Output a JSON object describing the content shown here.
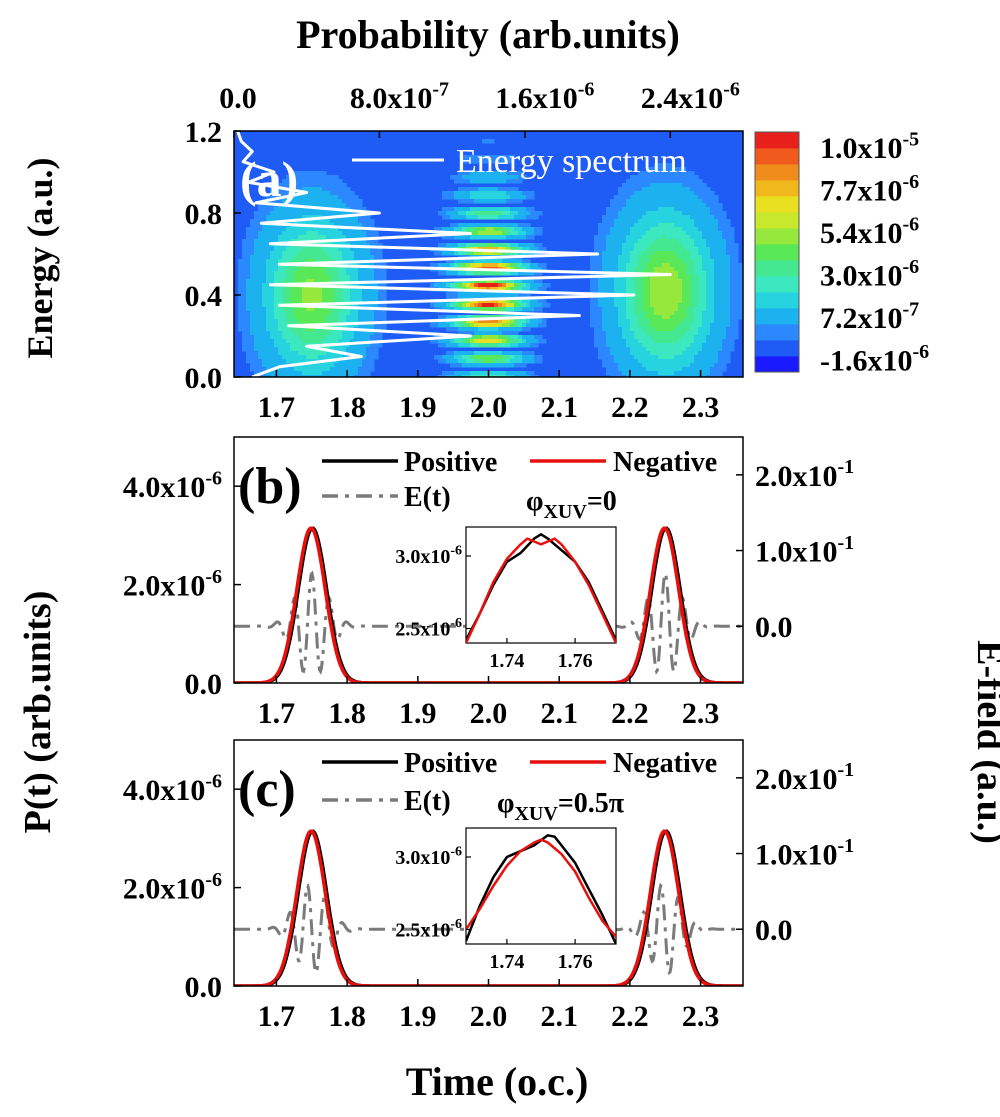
{
  "figure": {
    "top_axis_title": "Probability (arb.units)",
    "energy_axis_title": "Energy (a.u.)",
    "pt_axis_title": "P(t) (arb.units)",
    "efield_axis_title": "E-field (a.u.)",
    "time_axis_title": "Time (o.c.)"
  },
  "colors": {
    "positive": "#000000",
    "negative": "#e8100c",
    "efield": "#7a7a7a",
    "spectrum": "#ffffff",
    "map_background": "#1f5cf5"
  },
  "chart_data": [
    {
      "id": "a",
      "type": "heatmap",
      "panel_label": "(a)",
      "xlabel": "Time (o.c.)",
      "ylabel": "Energy (a.u.)",
      "top_xlabel": "Probability (arb.units)",
      "xlim": [
        1.64,
        2.36
      ],
      "ylim": [
        0.0,
        1.2
      ],
      "top_xlim": [
        0.0,
        2.8e-06
      ],
      "x_ticks": [
        1.7,
        1.8,
        1.9,
        2.0,
        2.1,
        2.2,
        2.3
      ],
      "x_tick_labels": [
        "1.7",
        "1.8",
        "1.9",
        "2.0",
        "2.1",
        "2.2",
        "2.3"
      ],
      "y_ticks": [
        0.0,
        0.4,
        0.8,
        1.2
      ],
      "y_tick_labels": [
        "0.0",
        "0.4",
        "0.8",
        "1.2"
      ],
      "top_ticks": [
        0.0,
        8e-07,
        1.6e-06,
        2.4e-06
      ],
      "top_tick_labels": [
        "0.0",
        "8.0x10",
        "1.6x10",
        "2.4x10"
      ],
      "top_tick_exponents": [
        "",
        "-7",
        "-6",
        "-6"
      ],
      "colorbar": {
        "range": [
          -1.6e-06,
          1e-05
        ],
        "tick_labels": [
          "1.0x10",
          "7.7x10",
          "5.4x10",
          "3.0x10",
          "7.2x10",
          "-1.6x10"
        ],
        "tick_exponents": [
          "-5",
          "-6",
          "-6",
          "-6",
          "-7",
          "-6"
        ],
        "colors": [
          "#1a1aff",
          "#1f5cf5",
          "#2c88ff",
          "#1cb2f0",
          "#28d3e0",
          "#3ce8c0",
          "#44e890",
          "#58e858",
          "#96e83c",
          "#c8e82c",
          "#e8e020",
          "#f0b81c",
          "#f08c1c",
          "#f05a1c",
          "#e8201c"
        ]
      },
      "legend": [
        {
          "name": "Energy spectrum",
          "style": "line",
          "color": "#ffffff"
        }
      ],
      "blobs": [
        {
          "t": 1.75,
          "e": 0.4,
          "sigma_t": 0.042,
          "sigma_e": 0.24,
          "peak": 4.5e-06,
          "fringes": 0
        },
        {
          "t": 2.0,
          "e": 0.42,
          "sigma_t": 0.03,
          "sigma_e": 0.26,
          "peak": 1e-05,
          "fringes": 9
        },
        {
          "t": 2.25,
          "e": 0.42,
          "sigma_t": 0.042,
          "sigma_e": 0.24,
          "peak": 5e-06,
          "fringes": 0
        }
      ],
      "spectrum": {
        "energy": [
          0.0,
          0.05,
          0.1,
          0.15,
          0.2,
          0.25,
          0.3,
          0.35,
          0.4,
          0.45,
          0.5,
          0.55,
          0.6,
          0.65,
          0.7,
          0.75,
          0.8,
          0.85,
          0.9,
          0.95,
          1.0,
          1.05,
          1.1,
          1.15,
          1.2
        ],
        "probability": [
          1e-07,
          2.5e-07,
          7e-07,
          4e-07,
          1.3e-06,
          3e-07,
          1.9e-06,
          2.5e-07,
          2.2e-06,
          2e-07,
          2.4e-06,
          2.5e-07,
          2e-06,
          2e-07,
          1.3e-06,
          1.5e-07,
          8e-07,
          1.2e-07,
          4e-07,
          8e-08,
          2.2e-07,
          5e-08,
          1e-07,
          4e-08,
          2e-08
        ]
      }
    },
    {
      "id": "b",
      "type": "line",
      "panel_label": "(b)",
      "phase_label": "φ",
      "phase_subscript": "XUV",
      "phase_value": "=0",
      "xlim": [
        1.64,
        2.36
      ],
      "ylim": [
        0.0,
        5e-06
      ],
      "y2lim": [
        -0.075,
        0.25
      ],
      "x_ticks": [
        1.7,
        1.8,
        1.9,
        2.0,
        2.1,
        2.2,
        2.3
      ],
      "x_tick_labels": [
        "1.7",
        "1.8",
        "1.9",
        "2.0",
        "2.1",
        "2.2",
        "2.3"
      ],
      "y_ticks": [
        0.0,
        2e-06,
        4e-06
      ],
      "y_tick_labels": [
        "0.0",
        "2.0x10",
        "4.0x10"
      ],
      "y_tick_exponents": [
        "",
        "-6",
        "-6"
      ],
      "y2_ticks": [
        0.0,
        0.1,
        0.2
      ],
      "y2_tick_labels": [
        "0.0",
        "1.0x10",
        "2.0x10"
      ],
      "y2_tick_exponents": [
        "",
        "-1",
        "-1"
      ],
      "legend": [
        {
          "name": "Positive",
          "style": "solid",
          "color": "#000000"
        },
        {
          "name": "Negative",
          "style": "solid",
          "color": "#e8100c"
        },
        {
          "name": "E(t)",
          "style": "dashdot",
          "color": "#7a7a7a"
        }
      ],
      "pulses": [
        {
          "center": 1.75,
          "peak": 3.15e-06,
          "sigma": 0.02
        },
        {
          "center": 2.25,
          "peak": 3.15e-06,
          "sigma": 0.02
        }
      ],
      "efield": [
        {
          "center": 1.75,
          "amplitude": 0.07,
          "sigma": 0.022,
          "period": 0.025
        },
        {
          "center": 2.25,
          "amplitude": 0.07,
          "sigma": 0.022,
          "period": 0.025
        }
      ],
      "inset": {
        "xlim": [
          1.728,
          1.772
        ],
        "ylim": [
          2.4e-06,
          3.2e-06
        ],
        "x_tick_labels": [
          "1.74",
          "1.76"
        ],
        "x_ticks": [
          1.74,
          1.76
        ],
        "y_tick_labels": [
          "2.5x10",
          "3.0x10"
        ],
        "y_tick_exponents": [
          "-6",
          "-6"
        ],
        "y_ticks": [
          2.5e-06,
          3e-06
        ],
        "positive": {
          "x": [
            1.728,
            1.732,
            1.736,
            1.74,
            1.744,
            1.748,
            1.75,
            1.752,
            1.756,
            1.76,
            1.764,
            1.768,
            1.772
          ],
          "y": [
            2.42e-06,
            2.6e-06,
            2.8e-06,
            2.96e-06,
            3.02e-06,
            3.12e-06,
            3.15e-06,
            3.12e-06,
            3.04e-06,
            2.96e-06,
            2.82e-06,
            2.62e-06,
            2.42e-06
          ]
        },
        "negative": {
          "x": [
            1.728,
            1.732,
            1.736,
            1.74,
            1.744,
            1.746,
            1.748,
            1.75,
            1.752,
            1.754,
            1.756,
            1.76,
            1.764,
            1.768,
            1.772
          ],
          "y": [
            2.4e-06,
            2.6e-06,
            2.82e-06,
            2.98e-06,
            3.08e-06,
            3.12e-06,
            3.1e-06,
            3.08e-06,
            3.1e-06,
            3.12e-06,
            3.08e-06,
            2.96e-06,
            2.8e-06,
            2.6e-06,
            2.4e-06
          ]
        }
      }
    },
    {
      "id": "c",
      "type": "line",
      "panel_label": "(c)",
      "phase_label": "φ",
      "phase_subscript": "XUV",
      "phase_value": "=0.5π",
      "xlim": [
        1.64,
        2.36
      ],
      "ylim": [
        0.0,
        5e-06
      ],
      "y2lim": [
        -0.075,
        0.25
      ],
      "x_ticks": [
        1.7,
        1.8,
        1.9,
        2.0,
        2.1,
        2.2,
        2.3
      ],
      "x_tick_labels": [
        "1.7",
        "1.8",
        "1.9",
        "2.0",
        "2.1",
        "2.2",
        "2.3"
      ],
      "y_ticks": [
        0.0,
        2e-06,
        4e-06
      ],
      "y_tick_labels": [
        "0.0",
        "2.0x10",
        "4.0x10"
      ],
      "y_tick_exponents": [
        "",
        "-6",
        "-6"
      ],
      "y2_ticks": [
        0.0,
        0.1,
        0.2
      ],
      "y2_tick_labels": [
        "0.0",
        "1.0x10",
        "2.0x10"
      ],
      "y2_tick_exponents": [
        "",
        "-1",
        "-1"
      ],
      "legend": [
        {
          "name": "Positive",
          "style": "solid",
          "color": "#000000"
        },
        {
          "name": "Negative",
          "style": "solid",
          "color": "#e8100c"
        },
        {
          "name": "E(t)",
          "style": "dashdot",
          "color": "#7a7a7a"
        }
      ],
      "pulses": [
        {
          "center": 1.75,
          "peak": 3.15e-06,
          "sigma": 0.02
        },
        {
          "center": 2.25,
          "peak": 3.15e-06,
          "sigma": 0.02
        }
      ],
      "efield": [
        {
          "center": 1.75,
          "amplitude": 0.06,
          "sigma": 0.022,
          "period": 0.025,
          "phase": 1.5708
        },
        {
          "center": 2.25,
          "amplitude": 0.06,
          "sigma": 0.022,
          "period": 0.025,
          "phase": 1.5708
        }
      ],
      "inset": {
        "xlim": [
          1.728,
          1.772
        ],
        "ylim": [
          2.4e-06,
          3.2e-06
        ],
        "x_tick_labels": [
          "1.74",
          "1.76"
        ],
        "x_ticks": [
          1.74,
          1.76
        ],
        "y_tick_labels": [
          "2.5x10",
          "3.0x10"
        ],
        "y_tick_exponents": [
          "-6",
          "-6"
        ],
        "y_ticks": [
          2.5e-06,
          3e-06
        ],
        "positive": {
          "x": [
            1.728,
            1.732,
            1.736,
            1.74,
            1.744,
            1.748,
            1.752,
            1.754,
            1.756,
            1.76,
            1.764,
            1.768,
            1.772
          ],
          "y": [
            2.42e-06,
            2.66e-06,
            2.86e-06,
            3e-06,
            3.04e-06,
            3.08e-06,
            3.15e-06,
            3.14e-06,
            3.08e-06,
            2.96e-06,
            2.78e-06,
            2.6e-06,
            2.4e-06
          ]
        },
        "negative": {
          "x": [
            1.728,
            1.732,
            1.736,
            1.74,
            1.744,
            1.748,
            1.75,
            1.752,
            1.756,
            1.76,
            1.764,
            1.768,
            1.772
          ],
          "y": [
            2.5e-06,
            2.64e-06,
            2.8e-06,
            2.94e-06,
            3.04e-06,
            3.1e-06,
            3.12e-06,
            3.1e-06,
            3.02e-06,
            2.9e-06,
            2.72e-06,
            2.56e-06,
            2.45e-06
          ]
        }
      }
    }
  ]
}
